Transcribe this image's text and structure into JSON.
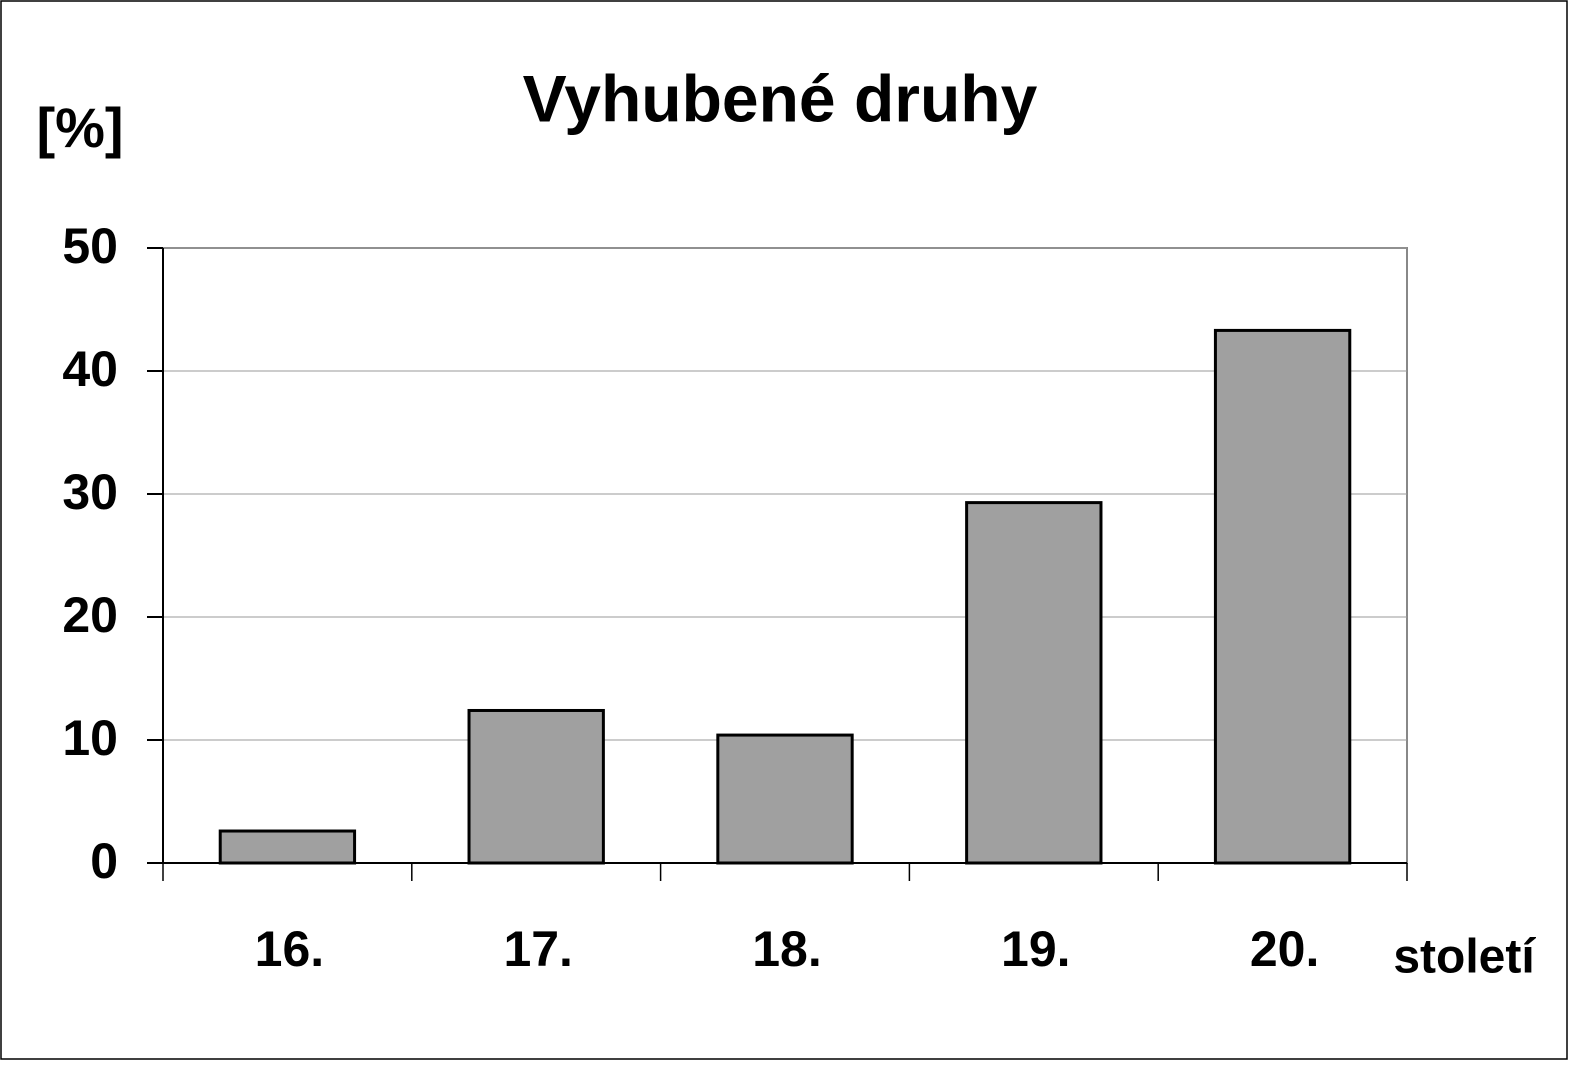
{
  "chart_data": {
    "type": "bar",
    "title": "Vyhubené druhy",
    "y_label": "[%]",
    "x_label": "století",
    "categories": [
      "16.",
      "17.",
      "18.",
      "19.",
      "20."
    ],
    "values": [
      2.6,
      12.4,
      10.4,
      29.3,
      43.3
    ],
    "color": "#a0a0a0",
    "ylim": [
      0,
      50
    ],
    "yticks": [
      0,
      10,
      20,
      30,
      40,
      50
    ],
    "grid": true
  }
}
